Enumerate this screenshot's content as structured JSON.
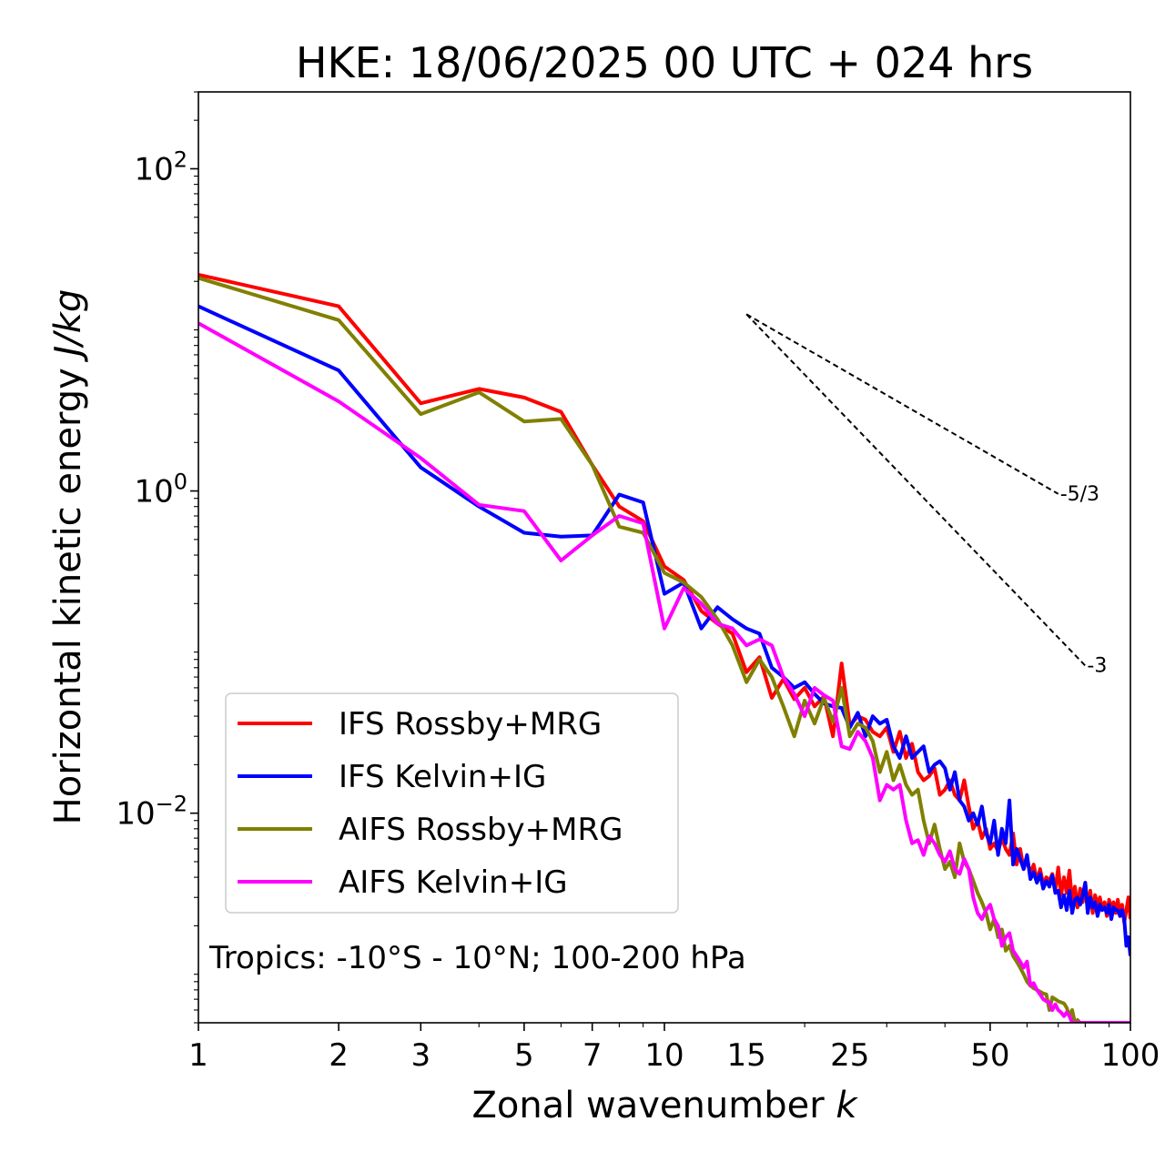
{
  "chart_data": {
    "type": "line",
    "title": "HKE: 18/06/2025 00 UTC + 024 hrs",
    "xlabel": "Zonal wavenumber",
    "xlabel_var": "k",
    "ylabel": "Horizontal kinetic energy",
    "ylabel_unit": "J/kg",
    "x_scale": "log",
    "y_scale": "log",
    "xlim": [
      1,
      100
    ],
    "ylim": [
      0.0005,
      300
    ],
    "x_ticks": [
      1,
      2,
      3,
      5,
      7,
      10,
      15,
      25,
      50,
      100
    ],
    "x_tick_labels": [
      "1",
      "2",
      "3",
      "5",
      "7",
      "10",
      "15",
      "25",
      "50",
      "100"
    ],
    "y_ticks": [
      {
        "value": 100,
        "base": "10",
        "exp": "2"
      },
      {
        "value": 1,
        "base": "10",
        "exp": "0"
      },
      {
        "value": 0.01,
        "base": "10",
        "exp": "−2"
      }
    ],
    "legend_position": "lower-left",
    "annotation": "Tropics: -10°S - 10°N; 100-200 hPa",
    "reference_slopes": [
      {
        "label": "-5/3",
        "slope": -1.6667,
        "x": [
          15,
          70
        ],
        "y0": 12.5
      },
      {
        "label": "-3",
        "slope": -3,
        "x": [
          15,
          80
        ],
        "y0": 12.5
      }
    ],
    "series": [
      {
        "name": "IFS Rossby+MRG",
        "color": "#ff0000",
        "x": [
          1,
          2,
          3,
          4,
          5,
          6,
          7,
          8,
          9,
          10,
          11,
          12,
          13,
          14,
          15,
          16,
          17,
          18,
          19,
          20,
          21,
          22,
          23,
          24,
          25,
          26,
          27,
          28,
          29,
          30,
          31,
          32,
          33,
          34,
          35,
          36,
          37,
          38,
          39,
          40,
          41,
          42,
          43,
          44,
          45,
          46,
          47,
          48,
          49,
          50,
          51,
          52,
          53,
          54,
          55,
          56,
          57,
          58,
          59,
          60,
          61,
          62,
          63,
          64,
          65,
          66,
          67,
          68,
          69,
          70,
          71,
          72,
          73,
          74,
          75,
          76,
          77,
          78,
          79,
          80,
          81,
          82,
          83,
          84,
          85,
          86,
          87,
          88,
          89,
          90,
          91,
          92,
          93,
          94,
          95,
          96,
          97,
          98,
          99,
          100
        ],
        "y": [
          22,
          14,
          3.5,
          4.3,
          3.8,
          3.1,
          1.45,
          0.8,
          0.65,
          0.34,
          0.28,
          0.18,
          0.15,
          0.13,
          0.075,
          0.093,
          0.052,
          0.068,
          0.051,
          0.06,
          0.046,
          0.053,
          0.03,
          0.085,
          0.035,
          0.04,
          0.038,
          0.032,
          0.03,
          0.034,
          0.024,
          0.032,
          0.022,
          0.027,
          0.018,
          0.016,
          0.017,
          0.019,
          0.013,
          0.014,
          0.016,
          0.013,
          0.012,
          0.016,
          0.011,
          0.008,
          0.009,
          0.007,
          0.008,
          0.006,
          0.0065,
          0.0058,
          0.007,
          0.006,
          0.0055,
          0.0075,
          0.0048,
          0.006,
          0.0045,
          0.0052,
          0.0042,
          0.0048,
          0.0038,
          0.0045,
          0.0036,
          0.004,
          0.0038,
          0.0042,
          0.0033,
          0.0046,
          0.0031,
          0.004,
          0.0032,
          0.0044,
          0.0028,
          0.0035,
          0.0026,
          0.0034,
          0.0028,
          0.0037,
          0.0025,
          0.0033,
          0.0024,
          0.0031,
          0.0027,
          0.003,
          0.0025,
          0.0028,
          0.0023,
          0.0029,
          0.0026,
          0.0028,
          0.0024,
          0.0029,
          0.0023,
          0.0027,
          0.0021,
          0.0025,
          0.003,
          0.0022
        ]
      },
      {
        "name": "IFS Kelvin+IG",
        "color": "#0000ff",
        "x": [
          1,
          2,
          3,
          4,
          5,
          6,
          7,
          8,
          9,
          10,
          11,
          12,
          13,
          14,
          15,
          16,
          17,
          18,
          19,
          20,
          21,
          22,
          23,
          24,
          25,
          26,
          27,
          28,
          29,
          30,
          31,
          32,
          33,
          34,
          35,
          36,
          37,
          38,
          39,
          40,
          41,
          42,
          43,
          44,
          45,
          46,
          47,
          48,
          49,
          50,
          51,
          52,
          53,
          54,
          55,
          56,
          57,
          58,
          59,
          60,
          61,
          62,
          63,
          64,
          65,
          66,
          67,
          68,
          69,
          70,
          71,
          72,
          73,
          74,
          75,
          76,
          77,
          78,
          79,
          80,
          81,
          82,
          83,
          84,
          85,
          86,
          87,
          88,
          89,
          90,
          91,
          92,
          93,
          94,
          95,
          96,
          97,
          98,
          99,
          100
        ],
        "y": [
          14,
          5.6,
          1.4,
          0.8,
          0.55,
          0.52,
          0.53,
          0.95,
          0.85,
          0.23,
          0.27,
          0.14,
          0.19,
          0.16,
          0.14,
          0.13,
          0.08,
          0.07,
          0.06,
          0.065,
          0.055,
          0.048,
          0.046,
          0.045,
          0.034,
          0.042,
          0.03,
          0.04,
          0.036,
          0.038,
          0.026,
          0.022,
          0.03,
          0.022,
          0.024,
          0.026,
          0.018,
          0.02,
          0.021,
          0.019,
          0.014,
          0.018,
          0.012,
          0.011,
          0.009,
          0.01,
          0.0085,
          0.011,
          0.0075,
          0.0065,
          0.009,
          0.0055,
          0.008,
          0.0065,
          0.012,
          0.0048,
          0.006,
          0.0052,
          0.0045,
          0.0055,
          0.0039,
          0.0043,
          0.0037,
          0.0042,
          0.0034,
          0.0038,
          0.0035,
          0.0041,
          0.0032,
          0.0033,
          0.0026,
          0.0031,
          0.0025,
          0.0033,
          0.0024,
          0.0029,
          0.003,
          0.0027,
          0.0031,
          0.0037,
          0.0024,
          0.003,
          0.0026,
          0.0028,
          0.0023,
          0.0027,
          0.0025,
          0.0026,
          0.0024,
          0.0027,
          0.0022,
          0.0026,
          0.0025,
          0.0025,
          0.0023,
          0.0025,
          0.0022,
          0.0015,
          0.0017,
          0.0013
        ]
      },
      {
        "name": "AIFS Rossby+MRG",
        "color": "#808000",
        "x": [
          1,
          2,
          3,
          4,
          5,
          6,
          7,
          8,
          9,
          10,
          11,
          12,
          13,
          14,
          15,
          16,
          17,
          18,
          19,
          20,
          21,
          22,
          23,
          24,
          25,
          26,
          27,
          28,
          29,
          30,
          31,
          32,
          33,
          34,
          35,
          36,
          37,
          38,
          39,
          40,
          41,
          42,
          43,
          44,
          45,
          46,
          47,
          48,
          49,
          50,
          51,
          52,
          53,
          54,
          55,
          56,
          57,
          58,
          59,
          60,
          61,
          62,
          63,
          64,
          65,
          66,
          67,
          68,
          69,
          70,
          71,
          72,
          73,
          74,
          75,
          76,
          77,
          78,
          79,
          80,
          81,
          82,
          83,
          84,
          85,
          86,
          87,
          88,
          89,
          90,
          91,
          92,
          93,
          94,
          95,
          96,
          97,
          98,
          99,
          100
        ],
        "y": [
          21,
          11.5,
          3,
          4.1,
          2.7,
          2.8,
          1.45,
          0.6,
          0.55,
          0.31,
          0.27,
          0.22,
          0.16,
          0.11,
          0.065,
          0.09,
          0.07,
          0.046,
          0.03,
          0.05,
          0.036,
          0.052,
          0.037,
          0.06,
          0.03,
          0.036,
          0.034,
          0.028,
          0.018,
          0.024,
          0.016,
          0.02,
          0.015,
          0.013,
          0.014,
          0.009,
          0.0065,
          0.0085,
          0.006,
          0.0045,
          0.005,
          0.004,
          0.0065,
          0.005,
          0.0045,
          0.0038,
          0.0032,
          0.0028,
          0.0024,
          0.0019,
          0.0022,
          0.0017,
          0.0019,
          0.0014,
          0.0015,
          0.0013,
          0.0012,
          0.0011,
          0.001,
          0.0009,
          0.00085,
          0.00082,
          0.0008,
          0.00078,
          0.00076,
          0.00075,
          0.0006,
          0.00072,
          0.0007,
          0.00068,
          0.00067,
          0.00066,
          0.00062,
          0.00055,
          0.0006,
          0.0005,
          0.00052,
          0.0005,
          0.0005,
          0.0005,
          0.0005,
          0.0005,
          0.0005,
          0.0005,
          0.0005,
          0.0005,
          0.0005,
          0.0005,
          0.0005,
          0.0005,
          0.0005,
          0.0005,
          0.0005,
          0.0005,
          0.0005,
          0.0005,
          0.0005,
          0.0005,
          0.0005,
          0.0005
        ]
      },
      {
        "name": "AIFS Kelvin+IG",
        "color": "#ff00ff",
        "x": [
          1,
          2,
          3,
          4,
          5,
          6,
          7,
          8,
          9,
          10,
          11,
          12,
          13,
          14,
          15,
          16,
          17,
          18,
          19,
          20,
          21,
          22,
          23,
          24,
          25,
          26,
          27,
          28,
          29,
          30,
          31,
          32,
          33,
          34,
          35,
          36,
          37,
          38,
          39,
          40,
          41,
          42,
          43,
          44,
          45,
          46,
          47,
          48,
          49,
          50,
          51,
          52,
          53,
          54,
          55,
          56,
          57,
          58,
          59,
          60,
          61,
          62,
          63,
          64,
          65,
          66,
          67,
          68,
          69,
          70,
          71,
          72,
          73,
          74,
          75,
          76,
          77,
          78,
          79,
          80,
          81,
          82,
          83,
          84,
          85,
          86,
          87,
          88,
          89,
          90,
          91,
          92,
          93,
          94,
          95,
          96,
          97,
          98,
          99,
          100
        ],
        "y": [
          11,
          3.6,
          1.6,
          0.82,
          0.75,
          0.37,
          0.53,
          0.7,
          0.63,
          0.14,
          0.25,
          0.2,
          0.15,
          0.14,
          0.11,
          0.12,
          0.11,
          0.07,
          0.055,
          0.04,
          0.06,
          0.054,
          0.05,
          0.026,
          0.025,
          0.032,
          0.028,
          0.022,
          0.012,
          0.015,
          0.014,
          0.015,
          0.009,
          0.0065,
          0.0068,
          0.0055,
          0.0072,
          0.0065,
          0.0055,
          0.005,
          0.0058,
          0.0045,
          0.0042,
          0.0052,
          0.0045,
          0.003,
          0.0024,
          0.0022,
          0.0025,
          0.0027,
          0.0022,
          0.002,
          0.0015,
          0.0017,
          0.0018,
          0.0014,
          0.0013,
          0.0012,
          0.0011,
          0.0012,
          0.00085,
          0.00088,
          0.0008,
          0.00075,
          0.0007,
          0.00068,
          0.00067,
          0.0006,
          0.00065,
          0.0006,
          0.00058,
          0.00055,
          0.00058,
          0.00055,
          0.0005,
          0.0005,
          0.0005,
          0.0005,
          0.0005,
          0.0005,
          0.0005,
          0.0005,
          0.0005,
          0.0005,
          0.0005,
          0.0005,
          0.0005,
          0.0005,
          0.0005,
          0.0005,
          0.0005,
          0.0005,
          0.0005,
          0.0005,
          0.0005,
          0.0005,
          0.0005,
          0.0005,
          0.0005,
          0.0005
        ]
      }
    ]
  }
}
